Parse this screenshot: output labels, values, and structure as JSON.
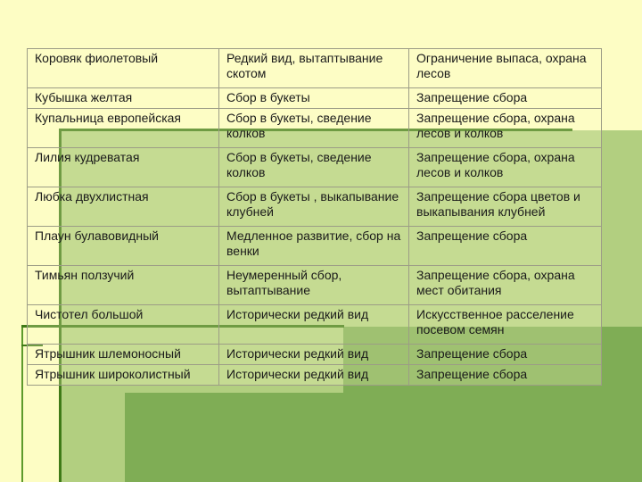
{
  "table": {
    "rows": [
      {
        "plant": "Коровяк фиолетовый",
        "threat": "Редкий вид, вытаптывание скотом",
        "measure": "Ограничение выпаса, охрана лесов"
      },
      {
        "plant": "Кубышка желтая",
        "threat": "Сбор в букеты",
        "measure": "Запрещение сбора"
      },
      {
        "plant": "Купальница европейская",
        "threat": "Сбор в букеты, сведение колков",
        "measure": "Запрещение сбора, охрана лесов и колков"
      },
      {
        "plant": "Лилия кудреватая",
        "threat": "Сбор в букеты, сведение колков",
        "measure": "Запрещение сбора, охрана лесов и колков"
      },
      {
        "plant": "Любка двухлистная",
        "threat": "Сбор в букеты , выкапывание клубней",
        "measure": "Запрещение сбора цветов и выкапывания клубней"
      },
      {
        "plant": "Плаун булавовидный",
        "threat": "Медленное развитие, сбор на венки",
        "measure": "Запрещение сбора"
      },
      {
        "plant": "Тимьян ползучий",
        "threat": "Неумеренный сбор, вытаптывание",
        "measure": "Запрещение сбора, охрана мест обитания"
      },
      {
        "plant": "Чистотел большой",
        "threat": "Исторически редкий вид",
        "measure": "Искусственное расселение посевом семян"
      },
      {
        "plant": "Ятрышник шлемоносный",
        "threat": "Исторически редкий вид",
        "measure": "Запрещение сбора"
      },
      {
        "plant": "Ятрышник широколистный",
        "threat": "Исторически редкий вид",
        "measure": "Запрещение сбора"
      }
    ]
  }
}
